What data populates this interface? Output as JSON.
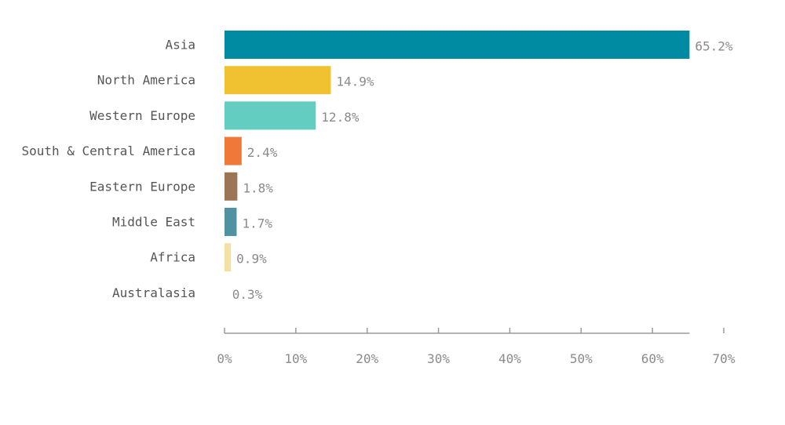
{
  "chart_data": {
    "type": "bar",
    "orientation": "horizontal",
    "title": "",
    "xlabel": "",
    "ylabel": "",
    "categories": [
      "Asia",
      "North America",
      "Western Europe",
      "South & Central America",
      "Eastern Europe",
      "Middle East",
      "Africa",
      "Australasia"
    ],
    "values": [
      65.2,
      14.9,
      12.8,
      2.4,
      1.8,
      1.7,
      0.9,
      0.3
    ],
    "value_labels": [
      "65.2%",
      "14.9%",
      "12.8%",
      "2.4%",
      "1.8%",
      "1.7%",
      "0.9%",
      "0.3%"
    ],
    "colors": [
      "#008ba3",
      "#f0c232",
      "#62cdc0",
      "#f07838",
      "#9c7654",
      "#4f93a3",
      "#f4e0a4",
      "#ffffff"
    ],
    "xlim": [
      0,
      70
    ],
    "x_ticks": [
      0,
      10,
      20,
      30,
      40,
      50,
      60,
      70
    ],
    "x_tick_labels": [
      "0%",
      "10%",
      "20%",
      "30%",
      "40%",
      "50%",
      "60%",
      "70%"
    ],
    "grid": false,
    "legend": "none"
  }
}
